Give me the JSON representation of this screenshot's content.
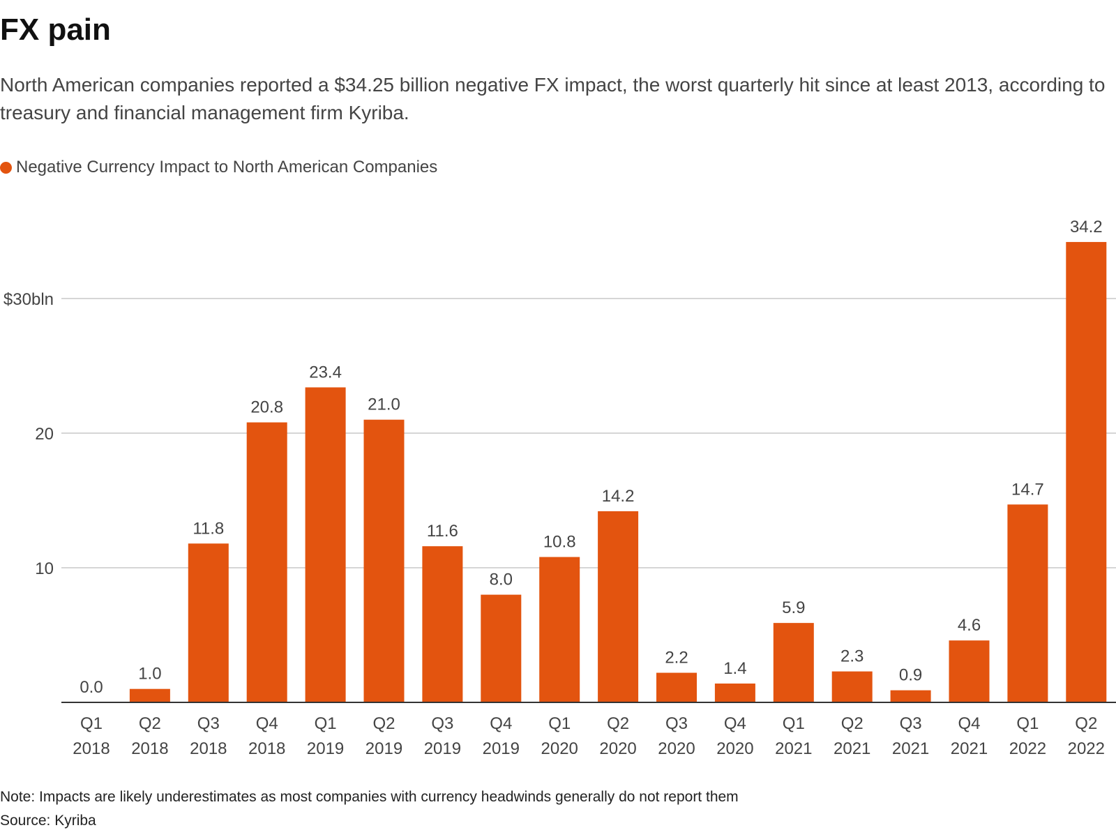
{
  "header": {
    "title": "FX pain",
    "subtitle": "North American companies reported a $34.25 billion negative FX impact, the worst quarterly hit since at least 2013, according to treasury and financial management firm Kyriba."
  },
  "footer": {
    "note": "Note: Impacts are likely underestimates as most companies with currency headwinds generally do not report them",
    "source": "Source: Kyriba"
  },
  "colors": {
    "bar": "#e3540f",
    "grid": "#c8c8c8",
    "axis": "#333333",
    "text": "#444444"
  },
  "chart_data": {
    "type": "bar",
    "title": "FX pain",
    "legend": {
      "placement": "top-left",
      "entries": [
        "Negative Currency Impact to North American Companies"
      ]
    },
    "categories": [
      [
        "Q1",
        "2018"
      ],
      [
        "Q2",
        "2018"
      ],
      [
        "Q3",
        "2018"
      ],
      [
        "Q4",
        "2018"
      ],
      [
        "Q1",
        "2019"
      ],
      [
        "Q2",
        "2019"
      ],
      [
        "Q3",
        "2019"
      ],
      [
        "Q4",
        "2019"
      ],
      [
        "Q1",
        "2020"
      ],
      [
        "Q2",
        "2020"
      ],
      [
        "Q3",
        "2020"
      ],
      [
        "Q4",
        "2020"
      ],
      [
        "Q1",
        "2021"
      ],
      [
        "Q2",
        "2021"
      ],
      [
        "Q3",
        "2021"
      ],
      [
        "Q4",
        "2021"
      ],
      [
        "Q1",
        "2022"
      ],
      [
        "Q2",
        "2022"
      ]
    ],
    "series": [
      {
        "name": "Negative Currency Impact to North American Companies",
        "values": [
          0.0,
          1.0,
          11.8,
          20.8,
          23.4,
          21.0,
          11.6,
          8.0,
          10.8,
          14.2,
          2.2,
          1.4,
          5.9,
          2.3,
          0.9,
          4.6,
          14.7,
          34.2
        ],
        "labels": [
          "0.0",
          "1.0",
          "11.8",
          "20.8",
          "23.4",
          "21.0",
          "11.6",
          "8.0",
          "10.8",
          "14.2",
          "2.2",
          "1.4",
          "5.9",
          "2.3",
          "0.9",
          "4.6",
          "14.7",
          "34.2"
        ]
      }
    ],
    "yticks": [
      {
        "value": 10,
        "label": "10"
      },
      {
        "value": 20,
        "label": "20"
      },
      {
        "value": 30,
        "label": "$30bln"
      }
    ],
    "ylim": [
      0,
      36
    ],
    "grid": true,
    "xlabel": "",
    "ylabel": ""
  }
}
